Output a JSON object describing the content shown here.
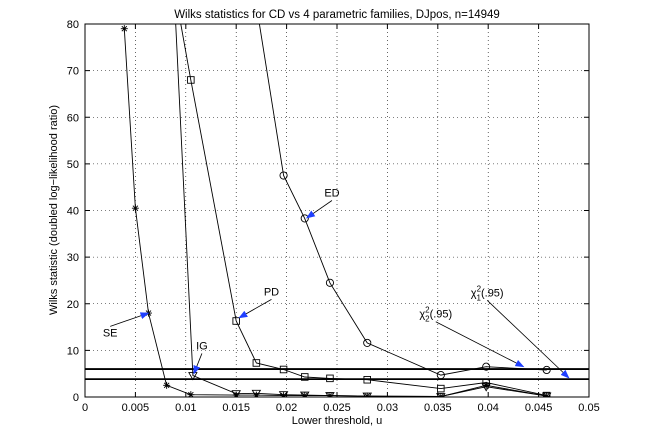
{
  "chart_data": {
    "type": "line",
    "title": "Wilks statistics for CD vs 4 parametric families, DJpos, n=14949",
    "xlabel": "Lower threshold, u",
    "ylabel": "Wilks statistic (doubled log−likelihood ratio)",
    "xlim": [
      0,
      0.05
    ],
    "ylim": [
      0,
      80
    ],
    "xticks": [
      0,
      0.005,
      0.01,
      0.015,
      0.02,
      0.025,
      0.03,
      0.035,
      0.04,
      0.045,
      0.05
    ],
    "xtick_labels": [
      "0",
      "0.005",
      "0.01",
      "0.015",
      "0.02",
      "0.025",
      "0.03",
      "0.035",
      "0.04",
      "0.045",
      "0.05"
    ],
    "yticks": [
      0,
      10,
      20,
      30,
      40,
      50,
      60,
      70,
      80
    ],
    "ytick_labels": [
      "0",
      "10",
      "20",
      "30",
      "40",
      "50",
      "60",
      "70",
      "80"
    ],
    "grid": "dotted",
    "hlines": [
      {
        "y": 3.84,
        "label": "χ²₁(.95)"
      },
      {
        "y": 5.99,
        "label": "χ²₂(.95)"
      }
    ],
    "series": [
      {
        "name": "SE",
        "marker": "star",
        "x": [
          0.0039,
          0.005,
          0.0063,
          0.0081,
          0.0105,
          0.015,
          0.017,
          0.0197,
          0.0218,
          0.0243,
          0.028,
          0.0353,
          0.0398,
          0.0458
        ],
        "y": [
          79,
          40.5,
          18,
          2.5,
          0.5,
          0.4,
          0.4,
          0.3,
          0.3,
          0.3,
          0.2,
          0.1,
          2.5,
          0.2
        ]
      },
      {
        "name": "IG",
        "marker": "triangle-down",
        "x": [
          0.009,
          0.0107,
          0.015,
          0.017,
          0.0197,
          0.0218,
          0.0243,
          0.028,
          0.0353,
          0.0398,
          0.0458
        ],
        "y": [
          80,
          4.6,
          0.7,
          0.8,
          0.5,
          0.4,
          0.3,
          0.2,
          0.1,
          2.2,
          0.2
        ]
      },
      {
        "name": "PD",
        "marker": "square",
        "x": [
          0.0095,
          0.0105,
          0.015,
          0.017,
          0.0197,
          0.0218,
          0.0243,
          0.028,
          0.0353,
          0.0398,
          0.0458
        ],
        "y": [
          80,
          68,
          16.3,
          7.3,
          5.9,
          4.3,
          4.0,
          3.7,
          1.8,
          3.1,
          0.3
        ]
      },
      {
        "name": "ED",
        "marker": "circle",
        "x": [
          0.0173,
          0.0197,
          0.0218,
          0.0243,
          0.028,
          0.0353,
          0.0398,
          0.0458
        ],
        "y": [
          80,
          47.5,
          38.3,
          24.5,
          11.6,
          4.7,
          6.5,
          5.8
        ]
      }
    ],
    "annotations": [
      {
        "text": "ED",
        "text_at": [
          0.0245,
          43
        ],
        "arrow_to": [
          0.022,
          38.4
        ]
      },
      {
        "text": "PD",
        "text_at": [
          0.0185,
          21.8
        ],
        "arrow_to": [
          0.0153,
          17
        ]
      },
      {
        "text": "SE",
        "text_at": [
          0.0025,
          13
        ],
        "arrow_to": [
          0.0063,
          18
        ]
      },
      {
        "text": "IG",
        "text_at": [
          0.0116,
          10.2
        ],
        "arrow_to": [
          0.0108,
          5
        ]
      },
      {
        "text": "χ²₂(.95)",
        "text_at": [
          0.0348,
          17
        ],
        "arrow_to": [
          0.0435,
          6.5
        ]
      },
      {
        "text": "χ²₁(.95)",
        "text_at": [
          0.0399,
          21.6
        ],
        "arrow_to": [
          0.048,
          4.1
        ]
      }
    ]
  }
}
